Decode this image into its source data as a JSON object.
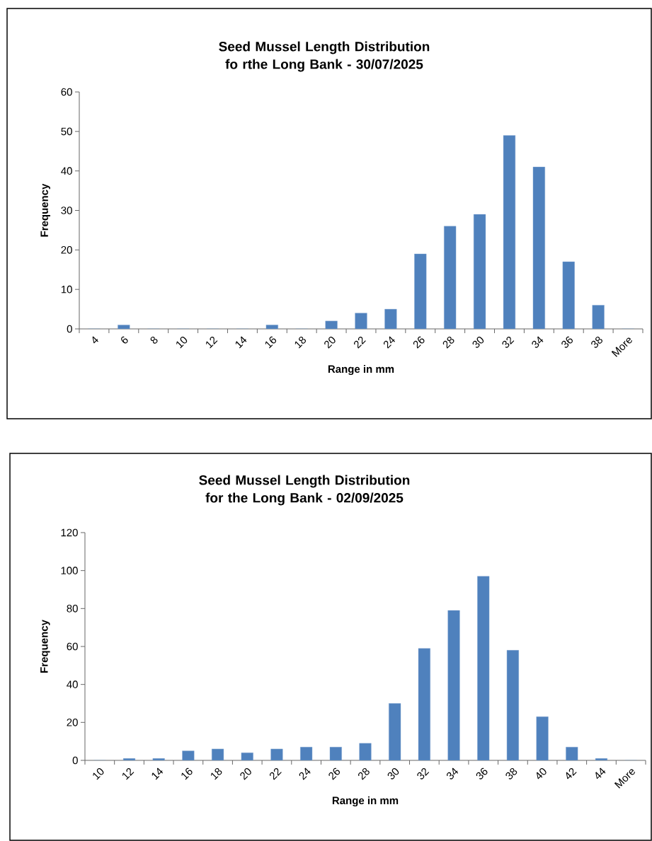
{
  "chart_data": [
    {
      "type": "bar",
      "title": "Seed Mussel Length Distribution fo rthe Long Bank - 30/07/2025",
      "xlabel": "Range in mm",
      "ylabel": "Frequency",
      "categories": [
        "4",
        "6",
        "8",
        "10",
        "12",
        "14",
        "16",
        "18",
        "20",
        "22",
        "24",
        "26",
        "28",
        "30",
        "32",
        "34",
        "36",
        "38",
        "More"
      ],
      "values": [
        0,
        1,
        0,
        0,
        0,
        0,
        1,
        0,
        2,
        4,
        5,
        19,
        26,
        29,
        49,
        41,
        17,
        6,
        0
      ],
      "color": "#4f81bd",
      "ylim": [
        0,
        60
      ],
      "yticks": [
        0,
        10,
        20,
        30,
        40,
        50,
        60
      ],
      "grid": false
    },
    {
      "type": "bar",
      "title": "Seed Mussel Length Distribution for the Long Bank - 02/09/2025",
      "xlabel": "Range in mm",
      "ylabel": "Frequency",
      "categories": [
        "10",
        "12",
        "14",
        "16",
        "18",
        "20",
        "22",
        "24",
        "26",
        "28",
        "30",
        "32",
        "34",
        "36",
        "38",
        "40",
        "42",
        "44",
        "More"
      ],
      "values": [
        0,
        1,
        1,
        5,
        6,
        4,
        6,
        7,
        7,
        9,
        30,
        59,
        79,
        97,
        58,
        23,
        7,
        1,
        0
      ],
      "color": "#4f81bd",
      "ylim": [
        0,
        120
      ],
      "yticks": [
        0,
        20,
        40,
        60,
        80,
        100,
        120
      ],
      "grid": false
    }
  ]
}
